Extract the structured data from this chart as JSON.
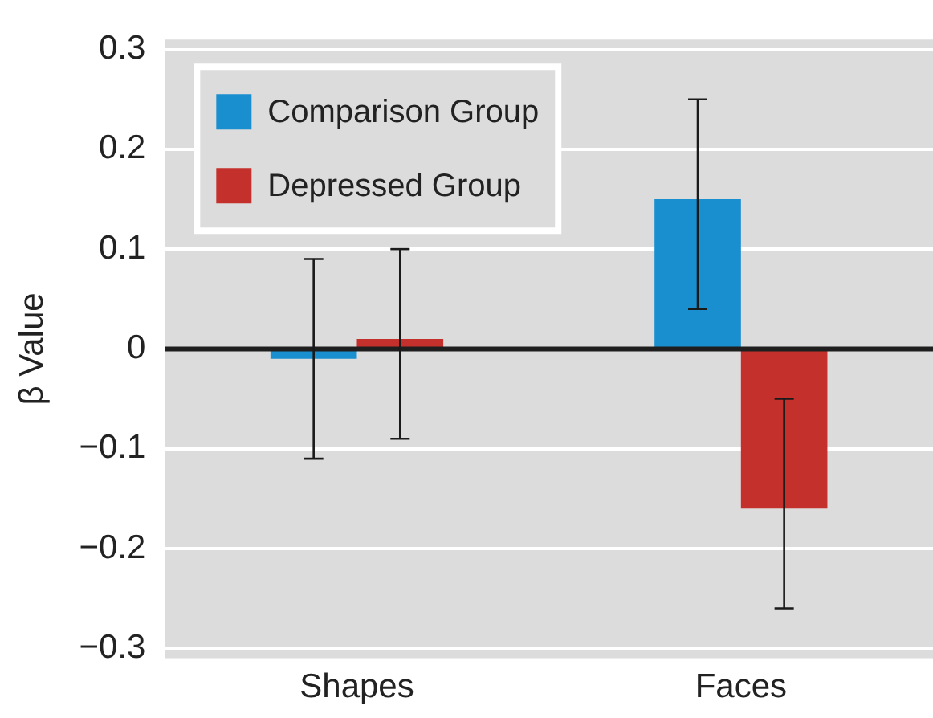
{
  "chart_data": {
    "type": "bar",
    "ylabel": "β Value",
    "categories": [
      "Shapes",
      "Faces"
    ],
    "series": [
      {
        "name": "Comparison Group",
        "color": "#1a8fd0",
        "values": [
          -0.01,
          0.15
        ],
        "errors": [
          [
            -0.11,
            0.09
          ],
          [
            0.04,
            0.25
          ]
        ]
      },
      {
        "name": "Depressed Group",
        "color": "#c4302b",
        "values": [
          0.01,
          -0.16
        ],
        "errors": [
          [
            -0.09,
            0.1
          ],
          [
            -0.26,
            -0.05
          ]
        ]
      }
    ],
    "ylim": [
      -0.31,
      0.31
    ],
    "yticks": [
      {
        "value": -0.3,
        "label": "−0.3"
      },
      {
        "value": -0.2,
        "label": "−0.2"
      },
      {
        "value": -0.1,
        "label": "−0.1"
      },
      0,
      0.1,
      0.2,
      0.3
    ],
    "ref_lines": [
      {
        "axis": "y",
        "value": 0,
        "color": "#1e1e1e"
      }
    ],
    "grid": "y",
    "legend": "top left"
  }
}
